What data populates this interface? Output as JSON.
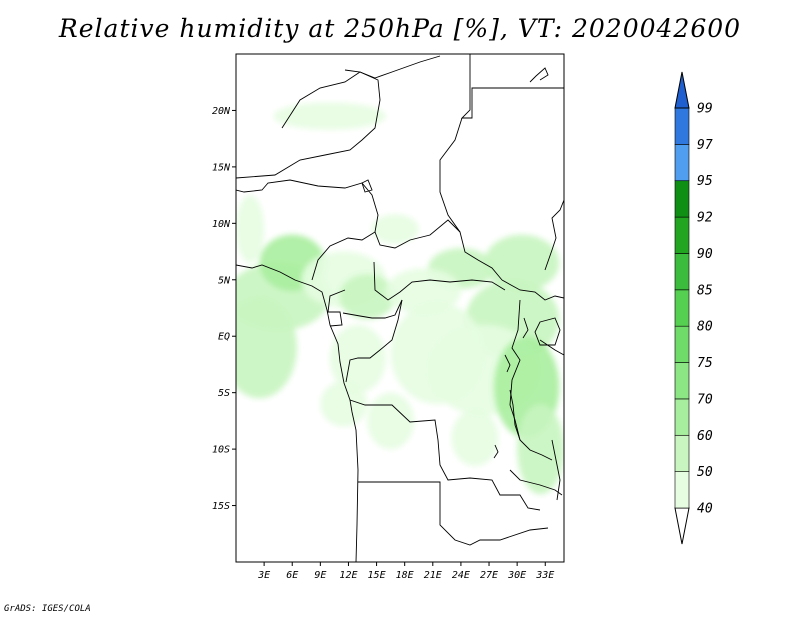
{
  "title": "Relative humidity at 250hPa [%], VT: 2020042600",
  "credit": "GrADS: IGES/COLA",
  "map": {
    "region": "Central Africa",
    "lat_range": [
      -20,
      25
    ],
    "lon_range": [
      0,
      35
    ],
    "lat_ticks": [
      {
        "value": 20,
        "label": "20N"
      },
      {
        "value": 15,
        "label": "15N"
      },
      {
        "value": 10,
        "label": "10N"
      },
      {
        "value": 5,
        "label": "5N"
      },
      {
        "value": 0,
        "label": "EQ"
      },
      {
        "value": -5,
        "label": "5S"
      },
      {
        "value": -10,
        "label": "10S"
      },
      {
        "value": -15,
        "label": "15S"
      }
    ],
    "lon_ticks": [
      {
        "value": 3,
        "label": "3E"
      },
      {
        "value": 6,
        "label": "6E"
      },
      {
        "value": 9,
        "label": "9E"
      },
      {
        "value": 12,
        "label": "12E"
      },
      {
        "value": 15,
        "label": "15E"
      },
      {
        "value": 18,
        "label": "18E"
      },
      {
        "value": 21,
        "label": "21E"
      },
      {
        "value": 24,
        "label": "24E"
      },
      {
        "value": 27,
        "label": "27E"
      },
      {
        "value": 30,
        "label": "30E"
      },
      {
        "value": 33,
        "label": "33E"
      }
    ]
  },
  "colorbar": {
    "levels": [
      "40",
      "50",
      "60",
      "70",
      "75",
      "80",
      "85",
      "90",
      "92",
      "95",
      "97",
      "99"
    ],
    "colors": [
      "#ffffff",
      "#e6fde1",
      "#c8f5c0",
      "#a8ee9f",
      "#8ce683",
      "#6fdc6a",
      "#55d050",
      "#3cbc3c",
      "#22a622",
      "#0f8f14",
      "#4f9ef0",
      "#2f78e0",
      "#1f5fcf"
    ]
  },
  "humid_regions": [
    {
      "lon": 4.5,
      "lat": 3.5,
      "rlon": 5.5,
      "rlat": 3.0,
      "level": 2
    },
    {
      "lon": 2.5,
      "lat": -1.0,
      "rlon": 4.0,
      "rlat": 4.5,
      "level": 2
    },
    {
      "lon": 6.0,
      "lat": 6.5,
      "rlon": 3.5,
      "rlat": 2.5,
      "level": 3
    },
    {
      "lon": 11.5,
      "lat": 5.0,
      "rlon": 4.5,
      "rlat": 2.5,
      "level": 1
    },
    {
      "lon": 14.0,
      "lat": 3.5,
      "rlon": 3.0,
      "rlat": 2.0,
      "level": 2
    },
    {
      "lon": 24.0,
      "lat": 6.0,
      "rlon": 3.5,
      "rlat": 1.8,
      "level": 2
    },
    {
      "lon": 30.5,
      "lat": 6.5,
      "rlon": 4.0,
      "rlat": 2.5,
      "level": 2
    },
    {
      "lon": 29.5,
      "lat": 1.5,
      "rlon": 5.0,
      "rlat": 3.5,
      "level": 2
    },
    {
      "lon": 26.5,
      "lat": -3.0,
      "rlon": 6.0,
      "rlat": 4.0,
      "level": 1
    },
    {
      "lon": 31.0,
      "lat": -4.5,
      "rlon": 3.5,
      "rlat": 4.5,
      "level": 3
    },
    {
      "lon": 32.5,
      "lat": -10.0,
      "rlon": 2.5,
      "rlat": 4.0,
      "level": 2
    },
    {
      "lon": 21.5,
      "lat": -1.5,
      "rlon": 5.0,
      "rlat": 4.5,
      "level": 1
    },
    {
      "lon": 13.0,
      "lat": -2.0,
      "rlon": 3.0,
      "rlat": 3.0,
      "level": 1
    },
    {
      "lon": 16.5,
      "lat": -7.5,
      "rlon": 2.5,
      "rlat": 2.5,
      "level": 1
    },
    {
      "lon": 11.5,
      "lat": -6.0,
      "rlon": 2.5,
      "rlat": 2.0,
      "level": 1
    },
    {
      "lon": 1.5,
      "lat": 9.5,
      "rlon": 1.5,
      "rlat": 3.0,
      "level": 1
    },
    {
      "lon": 10.0,
      "lat": 19.5,
      "rlon": 6.0,
      "rlat": 1.2,
      "level": 1
    },
    {
      "lon": 20.0,
      "lat": 4.0,
      "rlon": 4.0,
      "rlat": 2.0,
      "level": 1
    },
    {
      "lon": 25.5,
      "lat": -9.0,
      "rlon": 2.5,
      "rlat": 2.5,
      "level": 1
    },
    {
      "lon": 17.0,
      "lat": 9.5,
      "rlon": 2.5,
      "rlat": 1.3,
      "level": 1
    }
  ]
}
